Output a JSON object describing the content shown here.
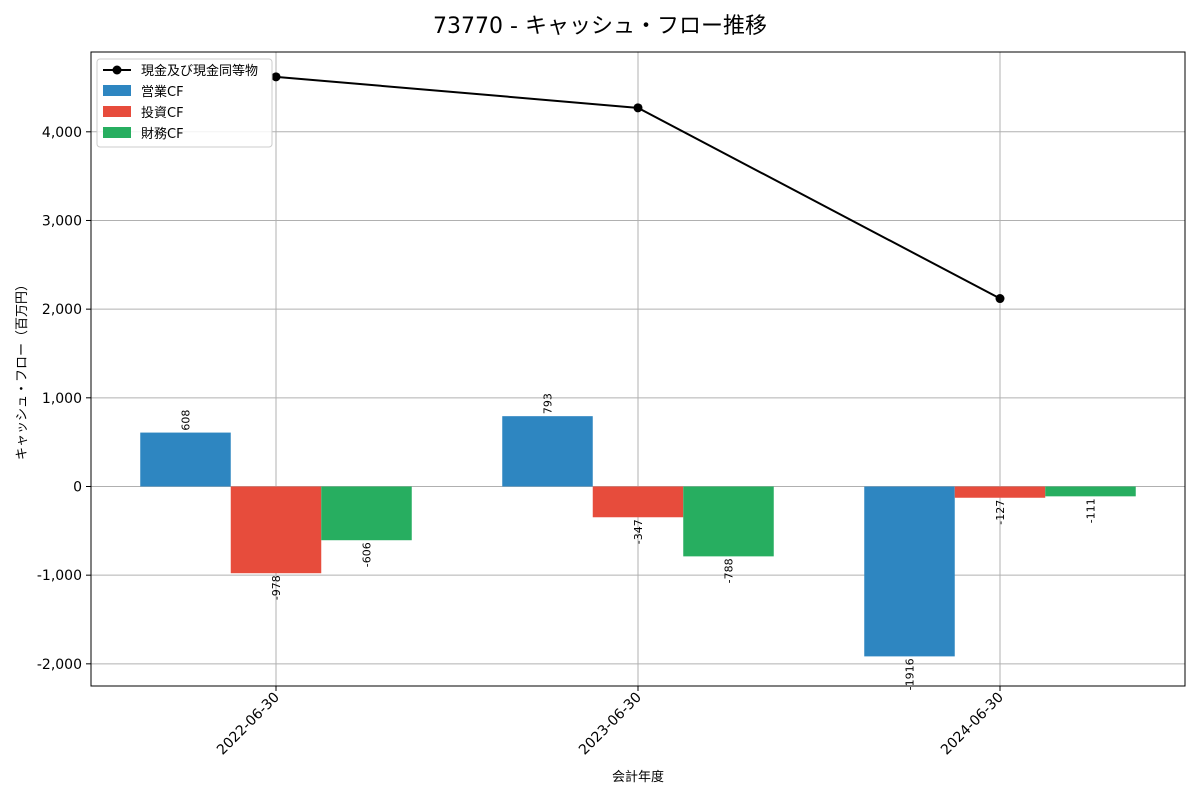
{
  "chart_data": {
    "type": "bar",
    "title": "73770 - キャッシュ・フロー推移",
    "xlabel": "会計年度",
    "ylabel": "キャッシュ・フロー（百万円）",
    "categories": [
      "2022-06-30",
      "2023-06-30",
      "2024-06-30"
    ],
    "ylim": [
      -2250,
      4900
    ],
    "yticks": [
      -2000,
      -1000,
      0,
      1000,
      2000,
      3000,
      4000
    ],
    "ytick_labels": [
      "-2,000",
      "-1,000",
      "0",
      "1,000",
      "2,000",
      "3,000",
      "4,000"
    ],
    "grid": true,
    "legend_position": "top-left",
    "series": [
      {
        "name": "営業CF",
        "kind": "bar",
        "color": "#2e86c1",
        "values": [
          608,
          793,
          -1916
        ],
        "labels": [
          "608",
          "793",
          "-1916"
        ]
      },
      {
        "name": "投資CF",
        "kind": "bar",
        "color": "#e74c3c",
        "values": [
          -978,
          -347,
          -127
        ],
        "labels": [
          "-978",
          "-347",
          "-127"
        ]
      },
      {
        "name": "財務CF",
        "kind": "bar",
        "color": "#27ae60",
        "values": [
          -606,
          -788,
          -111
        ],
        "labels": [
          "-606",
          "-788",
          "-111"
        ]
      },
      {
        "name": "現金及び現金同等物",
        "kind": "line",
        "color": "#000000",
        "values": [
          4620,
          4270,
          2120
        ]
      }
    ]
  }
}
